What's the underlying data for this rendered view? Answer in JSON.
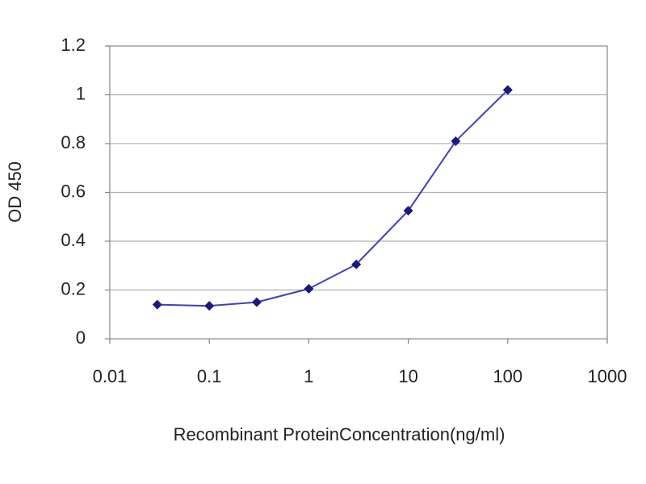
{
  "chart_data": {
    "type": "line",
    "ylabel": "OD 450",
    "xlabel": "Recombinant ProteinConcentration(ng/ml)",
    "x": [
      0.03,
      0.1,
      0.3,
      1,
      3,
      10,
      30,
      100
    ],
    "values": [
      0.14,
      0.135,
      0.15,
      0.205,
      0.305,
      0.525,
      0.81,
      1.02
    ],
    "color": "#3f3fb8",
    "marker_color": "#1a1a80",
    "xscale": "log",
    "xlim": [
      0.01,
      1000
    ],
    "xticks": [
      0.01,
      0.1,
      1,
      10,
      100,
      1000
    ],
    "ylim": [
      0,
      1.2
    ],
    "yticks": [
      0,
      0.2,
      0.4,
      0.6,
      0.8,
      1,
      1.2
    ],
    "grid": true
  }
}
